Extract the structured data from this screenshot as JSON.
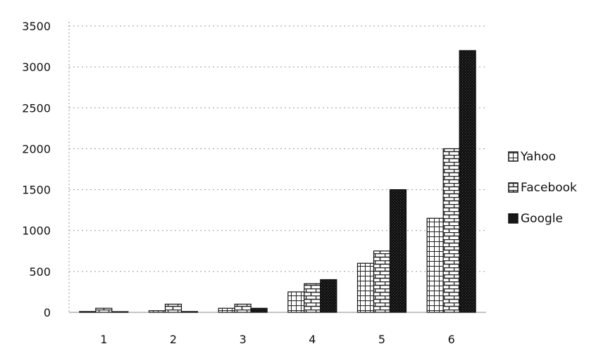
{
  "chart_data": {
    "type": "bar",
    "categories": [
      "1",
      "2",
      "3",
      "4",
      "5",
      "6"
    ],
    "series": [
      {
        "name": "Yahoo",
        "values": [
          10,
          20,
          50,
          250,
          600,
          1150
        ],
        "pattern": "grid"
      },
      {
        "name": "Facebook",
        "values": [
          50,
          100,
          100,
          350,
          750,
          2000
        ],
        "pattern": "brick"
      },
      {
        "name": "Google",
        "values": [
          5,
          10,
          50,
          400,
          1500,
          3200
        ],
        "pattern": "dark"
      }
    ],
    "yticks": [
      0,
      500,
      1000,
      1500,
      2000,
      2500,
      3000,
      3500
    ],
    "ylim": [
      0,
      3500
    ],
    "grid": true,
    "legend": "right",
    "title": "",
    "xlabel": "",
    "ylabel": ""
  }
}
